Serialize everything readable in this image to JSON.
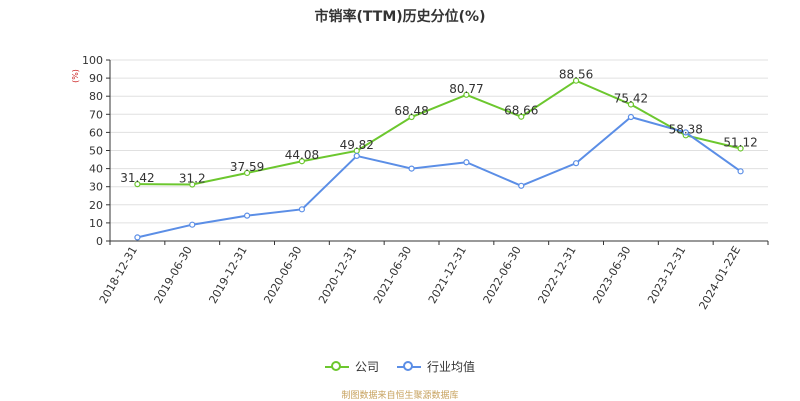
{
  "chart_data": {
    "type": "line",
    "title": "市销率(TTM)历史分位(%)",
    "ylabel": "(%)",
    "ylim": [
      0,
      100
    ],
    "yticks": [
      0,
      10,
      20,
      30,
      40,
      50,
      60,
      70,
      80,
      90,
      100
    ],
    "grid": true,
    "legend_position": "bottom",
    "categories": [
      "2018-12-31",
      "2019-06-30",
      "2019-12-31",
      "2020-06-30",
      "2020-12-31",
      "2021-06-30",
      "2021-12-31",
      "2022-06-30",
      "2022-12-31",
      "2023-06-30",
      "2023-12-31",
      "2024-01-22E"
    ],
    "series": [
      {
        "name": "公司",
        "color": "#6cc72e",
        "values": [
          31.42,
          31.2,
          37.59,
          44.08,
          49.82,
          68.48,
          80.77,
          68.66,
          88.56,
          75.42,
          58.38,
          51.12
        ],
        "labels": [
          "31.42",
          "31.2",
          "37.59",
          "44.08",
          "49.82",
          "68.48",
          "80.77",
          "68.66",
          "88.56",
          "75.42",
          "58.38",
          "51.12"
        ]
      },
      {
        "name": "行业均值",
        "color": "#5b8ee6",
        "values": [
          2,
          9,
          14,
          17.5,
          47,
          40,
          43.5,
          30.5,
          43,
          68.5,
          60,
          38.5
        ]
      }
    ]
  },
  "footer": {
    "source": "制图数据来自恒生聚源数据库"
  }
}
